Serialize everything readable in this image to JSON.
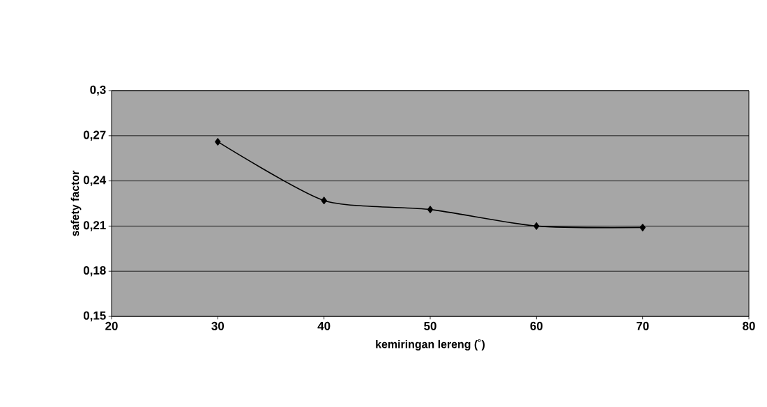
{
  "chart_data": {
    "type": "line",
    "xlabel": "kemiringan lereng  (˚)",
    "ylabel": "safety factor",
    "x": [
      30,
      40,
      50,
      60,
      70
    ],
    "series": [
      {
        "color": "#000000",
        "values": [
          0.266,
          0.227,
          0.221,
          0.21,
          0.209
        ]
      }
    ],
    "xlim": [
      20,
      80
    ],
    "xticks": [
      20,
      30,
      40,
      50,
      60,
      70,
      80
    ],
    "ylim": [
      0.15,
      0.3
    ],
    "yticks": [
      {
        "value": 0.15,
        "label": "0,15"
      },
      {
        "value": 0.18,
        "label": "0,18"
      },
      {
        "value": 0.21,
        "label": "0,21"
      },
      {
        "value": 0.24,
        "label": "0,24"
      },
      {
        "value": 0.27,
        "label": "0,27"
      },
      {
        "value": 0.3,
        "label": "0,3"
      }
    ],
    "grid": "y",
    "marker": "diamond",
    "line_style": "solid"
  }
}
